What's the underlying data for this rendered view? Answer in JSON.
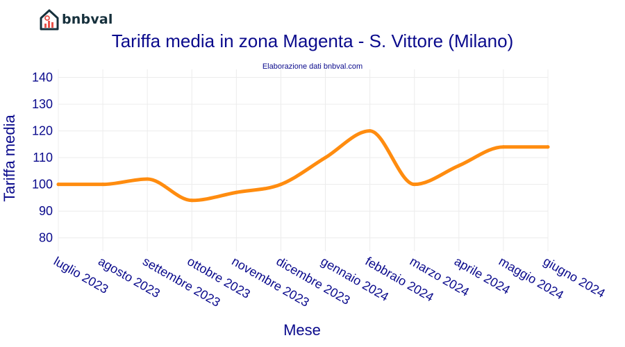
{
  "logo": {
    "text": "bnbval",
    "icon": "house-chart-icon",
    "color": "#16303c",
    "accent": "#e8524a"
  },
  "chart_data": {
    "type": "line",
    "title": "Tariffa media in zona Magenta - S. Vittore (Milano)",
    "subtitle": "Elaborazione dati bnbval.com",
    "xlabel": "Mese",
    "ylabel": "Tariffa media",
    "categories": [
      "luglio 2023",
      "agosto 2023",
      "settembre 2023",
      "ottobre 2023",
      "novembre 2023",
      "dicembre 2023",
      "gennaio 2024",
      "febbraio 2024",
      "marzo 2024",
      "aprile 2024",
      "maggio 2024",
      "giugno 2024"
    ],
    "series": [
      {
        "values": [
          100,
          100,
          102,
          94,
          97,
          100,
          110,
          120,
          100,
          107,
          114,
          114
        ],
        "color": "#ff8c0f"
      }
    ],
    "yticks": [
      80,
      90,
      100,
      110,
      120,
      130,
      140
    ],
    "ylim": [
      75,
      143
    ],
    "grid": true,
    "legend": "none"
  }
}
